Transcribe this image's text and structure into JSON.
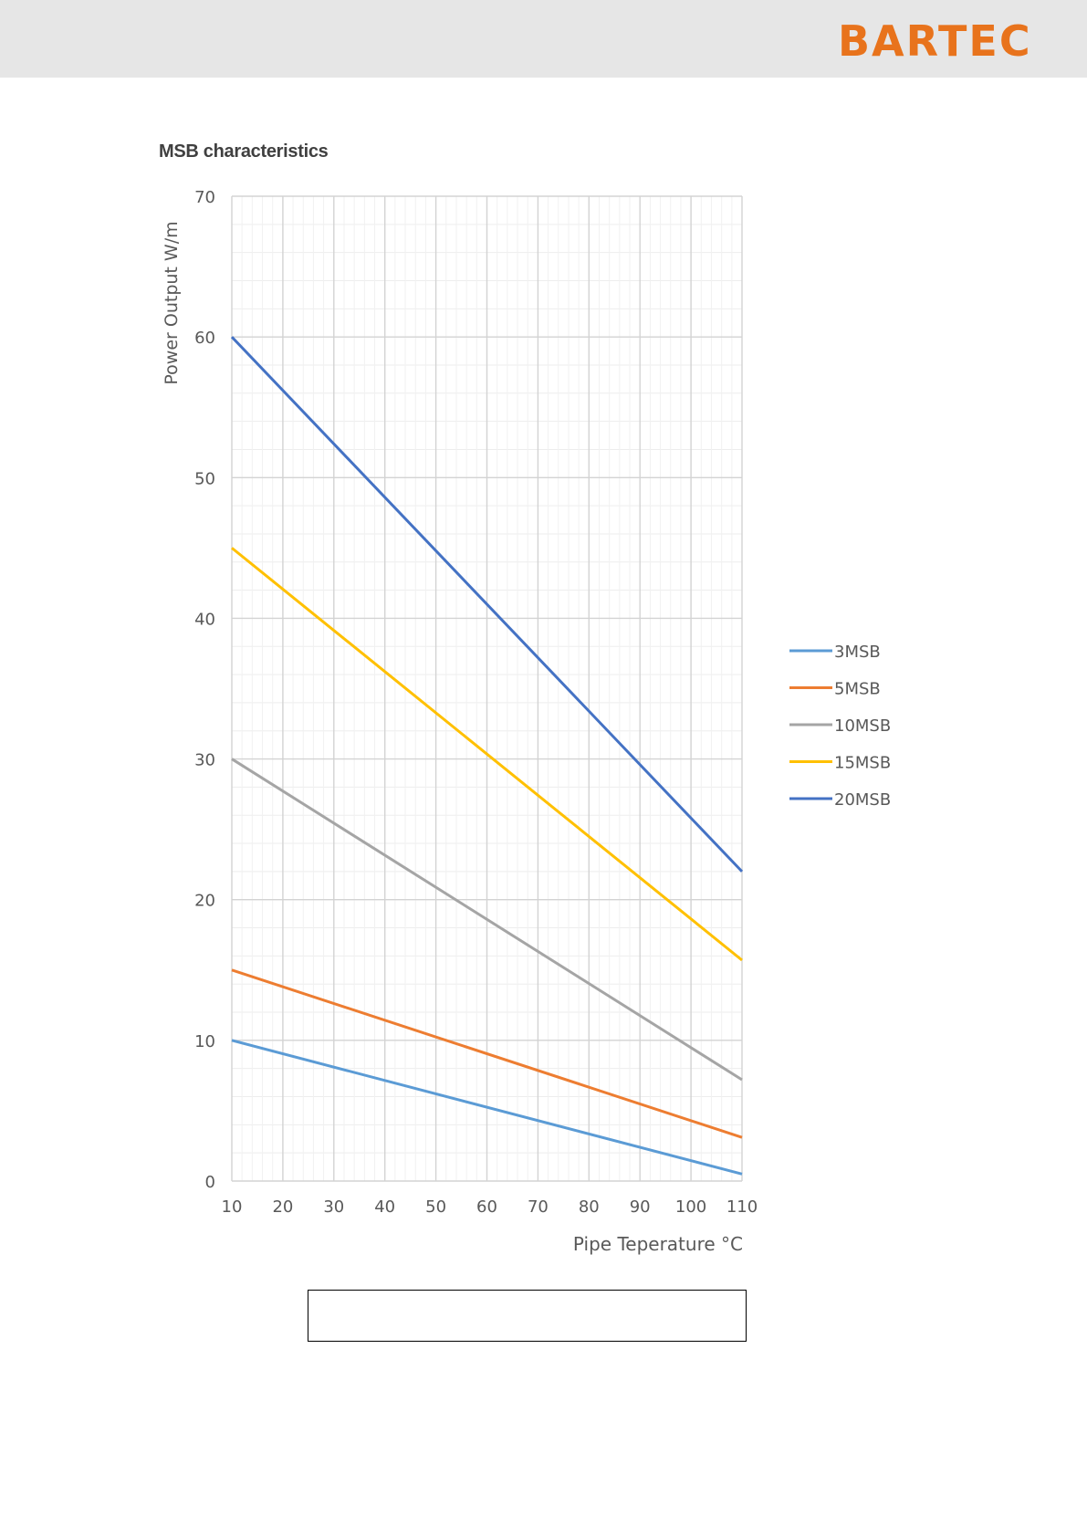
{
  "header": {
    "logo_text": "BARTEC",
    "logo_color": "#e8731c",
    "background_color": "#e6e6e6"
  },
  "chart_data": {
    "type": "line",
    "title": "MSB characteristics",
    "xlabel": "Pipe Teperature °C",
    "ylabel": "Power Output W/m",
    "x": [
      10,
      110
    ],
    "xlim": [
      10,
      110
    ],
    "ylim": [
      0,
      70
    ],
    "x_ticks": [
      10,
      20,
      30,
      40,
      50,
      60,
      70,
      80,
      90,
      100,
      110
    ],
    "y_ticks": [
      0,
      10,
      20,
      30,
      40,
      50,
      60,
      70
    ],
    "grid": true,
    "legend_position": "right",
    "series": [
      {
        "name": "3MSB",
        "color": "#5b9bd5",
        "values": [
          10,
          0.5
        ]
      },
      {
        "name": "5MSB",
        "color": "#ed7d31",
        "values": [
          15,
          3.1
        ]
      },
      {
        "name": "10MSB",
        "color": "#a5a5a5",
        "values": [
          30,
          7.2
        ]
      },
      {
        "name": "15MSB",
        "color": "#ffc000",
        "values": [
          45,
          15.7
        ]
      },
      {
        "name": "20MSB",
        "color": "#4472c4",
        "values": [
          60,
          22
        ]
      }
    ]
  },
  "footer_box": {
    "text": ""
  }
}
